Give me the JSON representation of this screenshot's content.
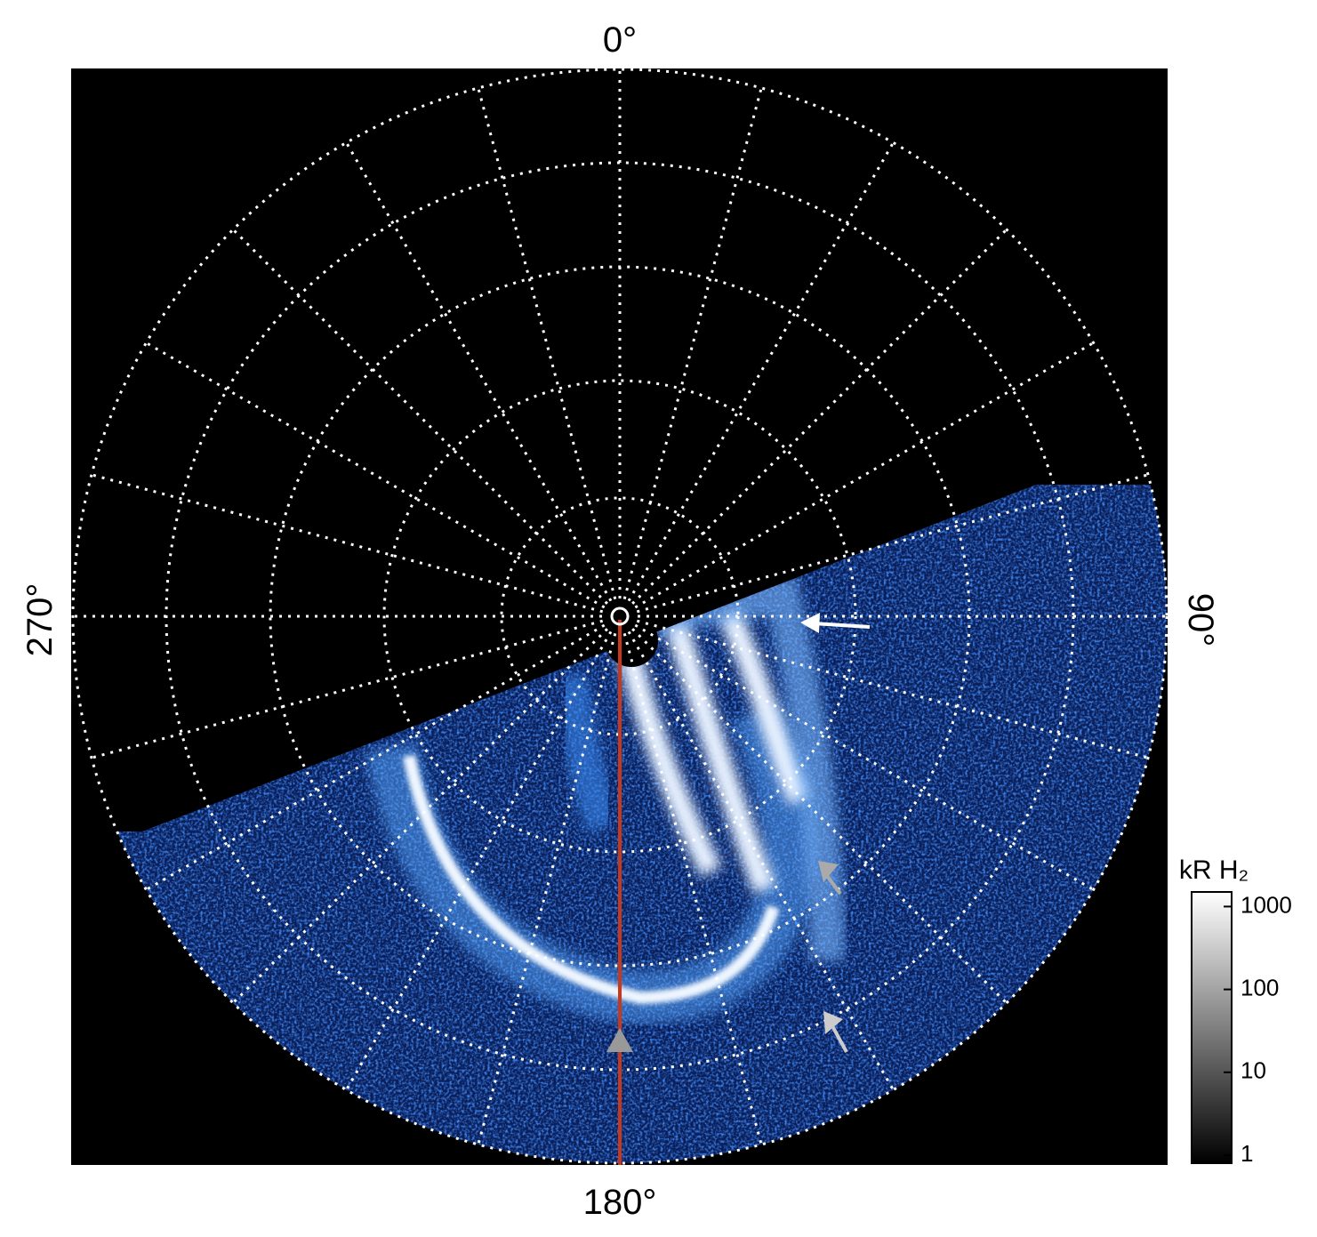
{
  "chart_data": {
    "type": "polar-image",
    "labels": {
      "top": "0°",
      "right": "90°",
      "bottom": "180°",
      "left": "270°"
    },
    "colorbar": {
      "title": "kR H₂",
      "scale": "log",
      "ylim": [
        0.8,
        1500
      ],
      "yticks": [
        1,
        10,
        100,
        1000
      ]
    }
  }
}
